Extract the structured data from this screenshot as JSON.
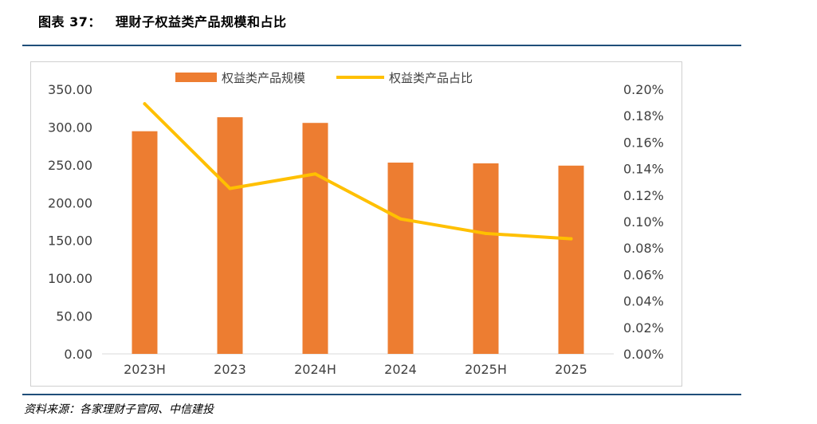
{
  "figure": {
    "title": "图表 37：   理财子权益类产品规模和占比",
    "source": "资料来源：各家理财子官网、中信建投"
  },
  "colors": {
    "bar": "#ED7D31",
    "line": "#FFC000",
    "rule": "#1F4E79"
  },
  "chart_data": {
    "type": "bar+line",
    "categories": [
      "2023H",
      "2023",
      "2024H",
      "2024",
      "2025H",
      "2025"
    ],
    "series": [
      {
        "name": "权益类产品规模",
        "type": "bar",
        "axis": "left",
        "values": [
          294.5,
          313.0,
          305.5,
          253.0,
          252.0,
          249.0
        ]
      },
      {
        "name": "权益类产品占比",
        "type": "line",
        "axis": "right",
        "values": [
          0.189,
          0.125,
          0.136,
          0.102,
          0.091,
          0.087
        ]
      }
    ],
    "y_left": {
      "min": 0,
      "max": 350,
      "step": 50,
      "tick_labels": [
        "0.00",
        "50.00",
        "100.00",
        "150.00",
        "200.00",
        "250.00",
        "300.00",
        "350.00"
      ]
    },
    "y_right": {
      "min": 0,
      "max": 0.2,
      "step": 0.02,
      "tick_labels": [
        "0.00%",
        "0.02%",
        "0.04%",
        "0.06%",
        "0.08%",
        "0.10%",
        "0.12%",
        "0.14%",
        "0.16%",
        "0.18%",
        "0.20%"
      ]
    },
    "legend_position": "top",
    "grid": false
  }
}
